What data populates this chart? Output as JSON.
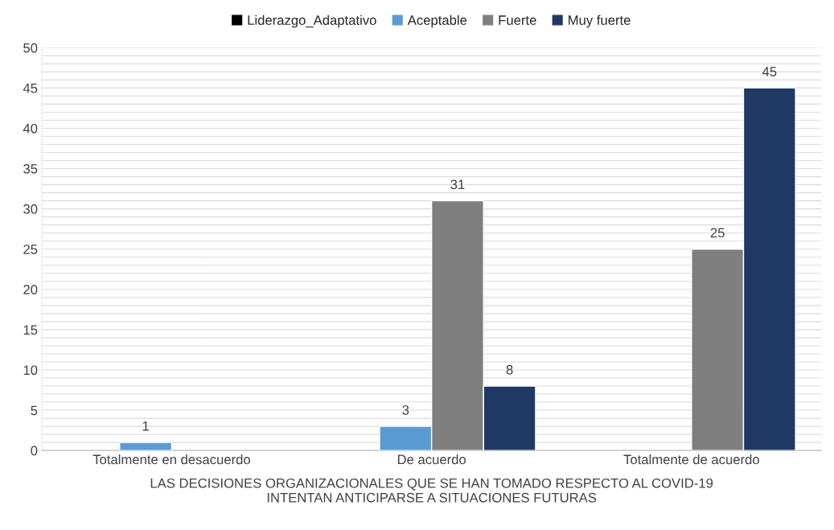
{
  "chart_data": {
    "type": "bar",
    "xlabel": "LAS DECISIONES ORGANIZACIONALES QUE SE HAN TOMADO RESPECTO AL COVID-19\nINTENTAN ANTICIPARSE A SITUACIONES FUTURAS",
    "categories": [
      "Totalmente en desacuerdo",
      "De acuerdo",
      "Totalmente de acuerdo"
    ],
    "series": [
      {
        "name": "Liderazgo_Adaptativo",
        "color": "#000000",
        "values": [
          null,
          null,
          null
        ]
      },
      {
        "name": "Aceptable",
        "color": "#5b9bd5",
        "values": [
          1,
          3,
          null
        ]
      },
      {
        "name": "Fuerte",
        "color": "#7f7f7f",
        "values": [
          null,
          31,
          25
        ]
      },
      {
        "name": "Muy fuerte",
        "color": "#203864",
        "values": [
          null,
          8,
          45
        ]
      }
    ],
    "ylim": [
      0,
      50
    ],
    "yticks": [
      0,
      {
        "value": 1,
        "label": null
      },
      {
        "value": 2,
        "label": null
      },
      {
        "value": 3,
        "label": null
      },
      {
        "value": 4,
        "label": null
      },
      5,
      {
        "value": 6,
        "label": null
      },
      {
        "value": 7,
        "label": null
      },
      {
        "value": 8,
        "label": null
      },
      {
        "value": 9,
        "label": null
      },
      10,
      {
        "value": 11,
        "label": null
      },
      {
        "value": 12,
        "label": null
      },
      {
        "value": 13,
        "label": null
      },
      {
        "value": 14,
        "label": null
      },
      15,
      {
        "value": 16,
        "label": null
      },
      {
        "value": 17,
        "label": null
      },
      {
        "value": 18,
        "label": null
      },
      {
        "value": 19,
        "label": null
      },
      20,
      {
        "value": 21,
        "label": null
      },
      {
        "value": 22,
        "label": null
      },
      {
        "value": 23,
        "label": null
      },
      {
        "value": 24,
        "label": null
      },
      25,
      {
        "value": 26,
        "label": null
      },
      {
        "value": 27,
        "label": null
      },
      {
        "value": 28,
        "label": null
      },
      {
        "value": 29,
        "label": null
      },
      30,
      {
        "value": 31,
        "label": null
      },
      {
        "value": 32,
        "label": null
      },
      {
        "value": 33,
        "label": null
      },
      {
        "value": 34,
        "label": null
      },
      35,
      {
        "value": 36,
        "label": null
      },
      {
        "value": 37,
        "label": null
      },
      {
        "value": 38,
        "label": null
      },
      {
        "value": 39,
        "label": null
      },
      40,
      {
        "value": 41,
        "label": null
      },
      {
        "value": 42,
        "label": null
      },
      {
        "value": 43,
        "label": null
      },
      {
        "value": 44,
        "label": null
      },
      45,
      {
        "value": 46,
        "label": null
      },
      {
        "value": 47,
        "label": null
      },
      {
        "value": 48,
        "label": null
      },
      {
        "value": 49,
        "label": null
      },
      50
    ],
    "grid": "y",
    "legend": "top",
    "data_labels": true
  }
}
